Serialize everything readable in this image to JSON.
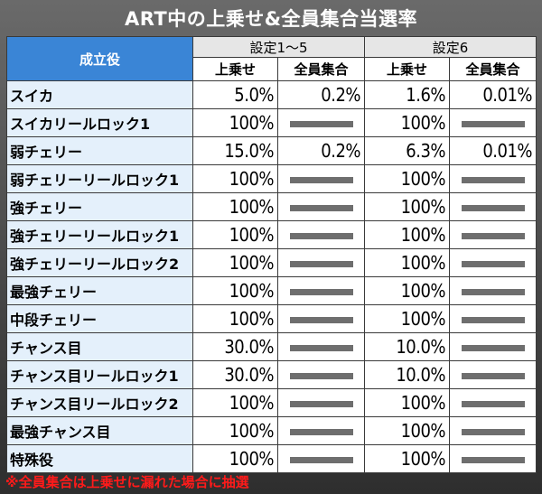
{
  "title": "ART中の上乗せ&全員集合当選率",
  "header": {
    "role_label": "成立役",
    "setting_a": "設定1～5",
    "setting_b": "設定6",
    "sub_a1": "上乗せ",
    "sub_a2": "全員集合",
    "sub_b1": "上乗せ",
    "sub_b2": "全員集合"
  },
  "rows": [
    {
      "name": "スイカ",
      "a_up": "5.0%",
      "a_all": "0.2%",
      "b_up": "1.6%",
      "b_all": "0.01%"
    },
    {
      "name": "スイカリールロック1",
      "a_up": "100%",
      "a_all": "",
      "b_up": "100%",
      "b_all": ""
    },
    {
      "name": "弱チェリー",
      "a_up": "15.0%",
      "a_all": "0.2%",
      "b_up": "6.3%",
      "b_all": "0.01%"
    },
    {
      "name": "弱チェリーリールロック1",
      "a_up": "100%",
      "a_all": "",
      "b_up": "100%",
      "b_all": ""
    },
    {
      "name": "強チェリー",
      "a_up": "100%",
      "a_all": "",
      "b_up": "100%",
      "b_all": ""
    },
    {
      "name": "強チェリーリールロック1",
      "a_up": "100%",
      "a_all": "",
      "b_up": "100%",
      "b_all": ""
    },
    {
      "name": "強チェリーリールロック2",
      "a_up": "100%",
      "a_all": "",
      "b_up": "100%",
      "b_all": ""
    },
    {
      "name": "最強チェリー",
      "a_up": "100%",
      "a_all": "",
      "b_up": "100%",
      "b_all": ""
    },
    {
      "name": "中段チェリー",
      "a_up": "100%",
      "a_all": "",
      "b_up": "100%",
      "b_all": ""
    },
    {
      "name": "チャンス目",
      "a_up": "30.0%",
      "a_all": "",
      "b_up": "10.0%",
      "b_all": ""
    },
    {
      "name": "チャンス目リールロック1",
      "a_up": "30.0%",
      "a_all": "",
      "b_up": "10.0%",
      "b_all": ""
    },
    {
      "name": "チャンス目リールロック2",
      "a_up": "100%",
      "a_all": "",
      "b_up": "100%",
      "b_all": ""
    },
    {
      "name": "最強チャンス目",
      "a_up": "100%",
      "a_all": "",
      "b_up": "100%",
      "b_all": ""
    },
    {
      "name": "特殊役",
      "a_up": "100%",
      "a_all": "",
      "b_up": "100%",
      "b_all": ""
    }
  ],
  "footnote": "※全員集合は上乗せに漏れた場合に抽選",
  "colors": {
    "header_blue": "#3a85d6",
    "name_bg": "#e4f0fb",
    "dash": "#6e6e6e",
    "note_red": "#ff1a1a"
  }
}
